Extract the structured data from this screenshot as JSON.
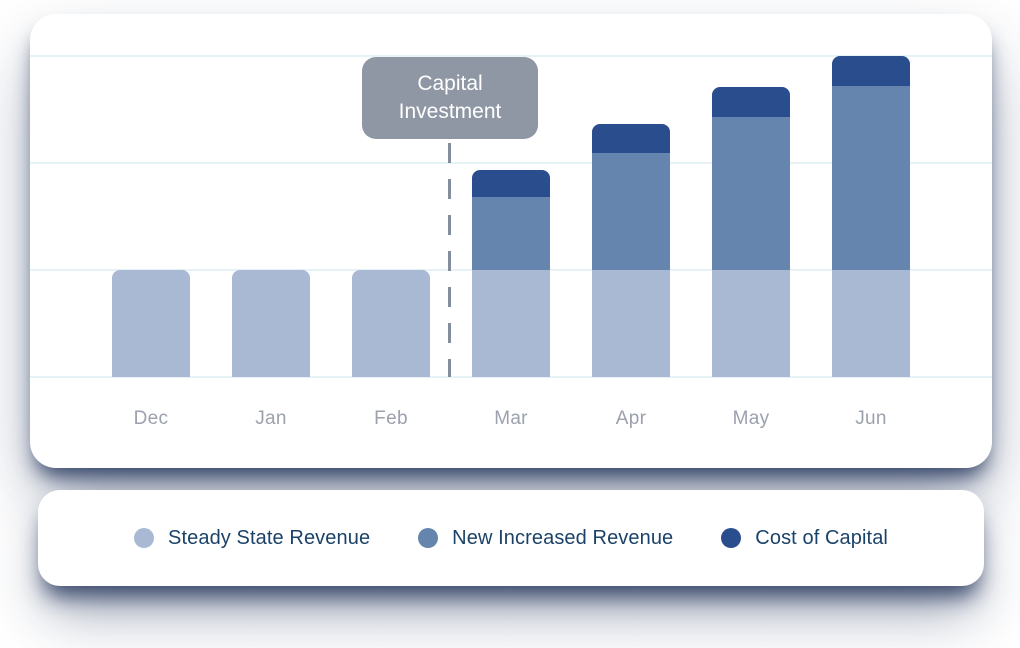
{
  "chart_data": {
    "type": "bar",
    "stacked": true,
    "title": "",
    "categories": [
      "Dec",
      "Jan",
      "Feb",
      "Mar",
      "Apr",
      "May",
      "Jun"
    ],
    "series": [
      {
        "name": "Steady State Revenue",
        "color": "#a9b8d3",
        "values": [
          100,
          100,
          100,
          100,
          100,
          100,
          100
        ]
      },
      {
        "name": "New Increased Revenue",
        "color": "#6584ae",
        "values": [
          0,
          0,
          0,
          68,
          110,
          143,
          172
        ]
      },
      {
        "name": "Cost of Capital",
        "color": "#2a4d8e",
        "values": [
          0,
          0,
          0,
          26,
          27,
          28,
          28
        ]
      }
    ],
    "ylim": [
      0,
      320
    ],
    "gridline_values": [
      0,
      100,
      200,
      300
    ],
    "grid": "horizontal",
    "legend_position": "separate card below chart",
    "annotation": {
      "label": "Capital Investment",
      "position_between": [
        "Feb",
        "Mar"
      ]
    },
    "colors": {
      "gridline": "#e7f2f7",
      "x_tick_text": "#9ba1ad",
      "annotation_bg": "#8f97a4",
      "annotation_text": "#ffffff",
      "dashed_line": "#848d9b",
      "legend_text": "#1b4269",
      "card_bg": "#ffffff"
    }
  }
}
